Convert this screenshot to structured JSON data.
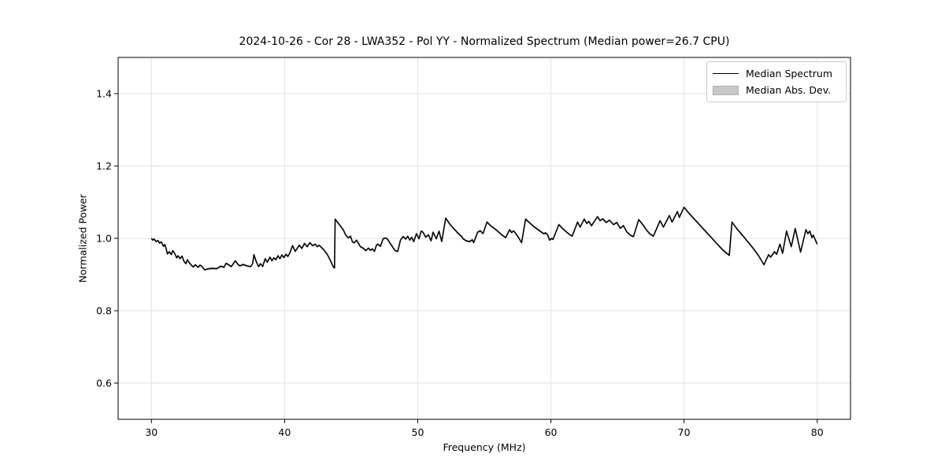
{
  "chart_data": {
    "type": "line",
    "title": "2024-10-26 - Cor 28 - LWA352 - Pol YY - Normalized Spectrum (Median power=26.7 CPU)",
    "xlabel": "Frequency (MHz)",
    "ylabel": "Normalized Power",
    "xlim": [
      27.5,
      82.5
    ],
    "ylim": [
      0.5,
      1.5
    ],
    "xticks": [
      30,
      40,
      50,
      60,
      70,
      80
    ],
    "xtick_labels": [
      "30",
      "40",
      "50",
      "60",
      "70",
      "80"
    ],
    "yticks": [
      0.6,
      0.8,
      1.0,
      1.2,
      1.4
    ],
    "ytick_labels": [
      "0.6",
      "0.8",
      "1.0",
      "1.2",
      "1.4"
    ],
    "grid": true,
    "legend": {
      "position": "upper right",
      "entries": [
        {
          "label": "Median Spectrum",
          "type": "line",
          "color": "#000000"
        },
        {
          "label": "Median Abs. Dev.",
          "type": "patch",
          "color": "#c8c8c8"
        }
      ]
    },
    "colors": {
      "line": "#000000",
      "band": "#c8c8c8",
      "grid": "#e2e2e2",
      "spine": "#000000",
      "text": "#000000",
      "background": "#ffffff"
    },
    "series": [
      {
        "name": "Median Spectrum",
        "type": "line",
        "color": "#000000",
        "x": [
          30.0,
          30.1,
          30.2,
          30.35,
          30.5,
          30.6,
          30.75,
          30.9,
          31.0,
          31.1,
          31.2,
          31.35,
          31.5,
          31.6,
          31.75,
          31.9,
          32.0,
          32.15,
          32.3,
          32.45,
          32.6,
          32.7,
          32.85,
          33.0,
          33.15,
          33.3,
          33.5,
          33.65,
          33.8,
          34.0,
          34.3,
          34.6,
          34.9,
          35.2,
          35.45,
          35.6,
          35.8,
          36.0,
          36.3,
          36.5,
          36.65,
          36.9,
          37.15,
          37.45,
          37.6,
          37.7,
          37.85,
          38.05,
          38.2,
          38.35,
          38.55,
          38.7,
          38.9,
          39.05,
          39.2,
          39.35,
          39.5,
          39.65,
          39.8,
          39.95,
          40.1,
          40.25,
          40.4,
          40.6,
          40.8,
          41.1,
          41.3,
          41.5,
          41.7,
          41.9,
          42.1,
          42.3,
          42.45,
          42.6,
          42.9,
          43.2,
          43.45,
          43.65,
          43.75,
          43.8,
          44.1,
          44.4,
          44.6,
          44.8,
          44.95,
          45.1,
          45.25,
          45.4,
          45.7,
          45.9,
          46.1,
          46.3,
          46.45,
          46.6,
          46.75,
          46.9,
          47.0,
          47.2,
          47.4,
          47.6,
          47.75,
          47.9,
          48.1,
          48.3,
          48.5,
          48.7,
          48.9,
          49.1,
          49.25,
          49.4,
          49.55,
          49.7,
          49.9,
          50.1,
          50.25,
          50.4,
          50.6,
          50.8,
          51.0,
          51.15,
          51.4,
          51.6,
          51.8,
          52.1,
          52.4,
          52.7,
          53.0,
          53.3,
          53.4,
          53.65,
          53.9,
          54.1,
          54.2,
          54.5,
          54.7,
          54.9,
          55.2,
          55.5,
          55.8,
          56.0,
          56.3,
          56.6,
          56.9,
          57.05,
          57.2,
          57.5,
          57.8,
          58.1,
          58.4,
          58.7,
          59.0,
          59.3,
          59.45,
          59.6,
          59.75,
          59.9,
          60.05,
          60.15,
          60.6,
          60.85,
          61.1,
          61.35,
          61.6,
          62.0,
          62.2,
          62.5,
          62.7,
          62.85,
          63.05,
          63.5,
          63.7,
          63.9,
          64.15,
          64.4,
          64.7,
          64.95,
          65.2,
          65.45,
          65.7,
          66.0,
          66.2,
          66.6,
          66.9,
          67.2,
          67.45,
          67.7,
          68.2,
          68.45,
          68.9,
          69.1,
          69.5,
          69.65,
          70.0,
          70.4,
          70.9,
          71.4,
          71.9,
          72.4,
          72.9,
          73.4,
          73.6,
          74.0,
          74.4,
          74.8,
          75.2,
          75.6,
          76.0,
          76.35,
          76.5,
          76.8,
          76.95,
          77.2,
          77.4,
          77.7,
          78.05,
          78.35,
          78.75,
          79.15,
          79.3,
          79.45,
          79.6,
          79.7,
          80.0
        ],
        "y": [
          1.0,
          0.995,
          0.998,
          0.991,
          0.994,
          0.987,
          0.99,
          0.978,
          0.983,
          0.972,
          0.957,
          0.963,
          0.955,
          0.966,
          0.958,
          0.946,
          0.952,
          0.944,
          0.951,
          0.936,
          0.93,
          0.941,
          0.932,
          0.926,
          0.921,
          0.927,
          0.92,
          0.926,
          0.922,
          0.913,
          0.916,
          0.917,
          0.916,
          0.923,
          0.92,
          0.931,
          0.927,
          0.922,
          0.938,
          0.928,
          0.924,
          0.928,
          0.924,
          0.922,
          0.93,
          0.955,
          0.938,
          0.922,
          0.93,
          0.922,
          0.944,
          0.934,
          0.948,
          0.938,
          0.946,
          0.941,
          0.952,
          0.944,
          0.954,
          0.947,
          0.956,
          0.95,
          0.96,
          0.98,
          0.964,
          0.981,
          0.972,
          0.986,
          0.977,
          0.988,
          0.98,
          0.984,
          0.977,
          0.981,
          0.97,
          0.956,
          0.938,
          0.922,
          0.918,
          1.053,
          1.039,
          1.024,
          1.009,
          1.001,
          1.006,
          0.99,
          0.988,
          0.995,
          0.977,
          0.973,
          0.966,
          0.973,
          0.967,
          0.971,
          0.964,
          0.981,
          0.984,
          0.978,
          0.999,
          1.001,
          0.997,
          0.988,
          0.977,
          0.966,
          0.964,
          0.995,
          1.005,
          0.998,
          1.006,
          0.995,
          1.003,
          0.991,
          1.013,
          0.999,
          1.02,
          1.017,
          1.003,
          1.01,
          0.993,
          1.017,
          0.999,
          1.02,
          0.991,
          1.056,
          1.04,
          1.027,
          1.015,
          1.005,
          0.999,
          0.993,
          0.991,
          0.996,
          0.988,
          1.017,
          1.021,
          1.013,
          1.045,
          1.034,
          1.026,
          1.02,
          1.01,
          1.002,
          1.024,
          1.016,
          1.021,
          1.006,
          0.988,
          1.053,
          1.043,
          1.033,
          1.025,
          1.017,
          1.013,
          1.015,
          1.01,
          0.995,
          1.0,
          0.997,
          1.038,
          1.028,
          1.02,
          1.012,
          1.006,
          1.045,
          1.031,
          1.053,
          1.041,
          1.047,
          1.035,
          1.06,
          1.049,
          1.054,
          1.044,
          1.05,
          1.038,
          1.044,
          1.028,
          1.035,
          1.018,
          1.008,
          1.005,
          1.052,
          1.038,
          1.022,
          1.012,
          1.006,
          1.049,
          1.031,
          1.063,
          1.045,
          1.074,
          1.058,
          1.086,
          1.068,
          1.048,
          1.028,
          1.008,
          0.988,
          0.968,
          0.953,
          1.045,
          1.025,
          1.008,
          0.99,
          0.972,
          0.952,
          0.927,
          0.955,
          0.948,
          0.963,
          0.956,
          0.984,
          0.959,
          1.02,
          0.977,
          1.027,
          0.962,
          1.024,
          1.013,
          1.02,
          1.002,
          1.009,
          0.984
        ]
      },
      {
        "name": "Median Abs. Dev.",
        "type": "band",
        "color": "#c8c8c8",
        "halfwidth": 0.003
      }
    ]
  }
}
